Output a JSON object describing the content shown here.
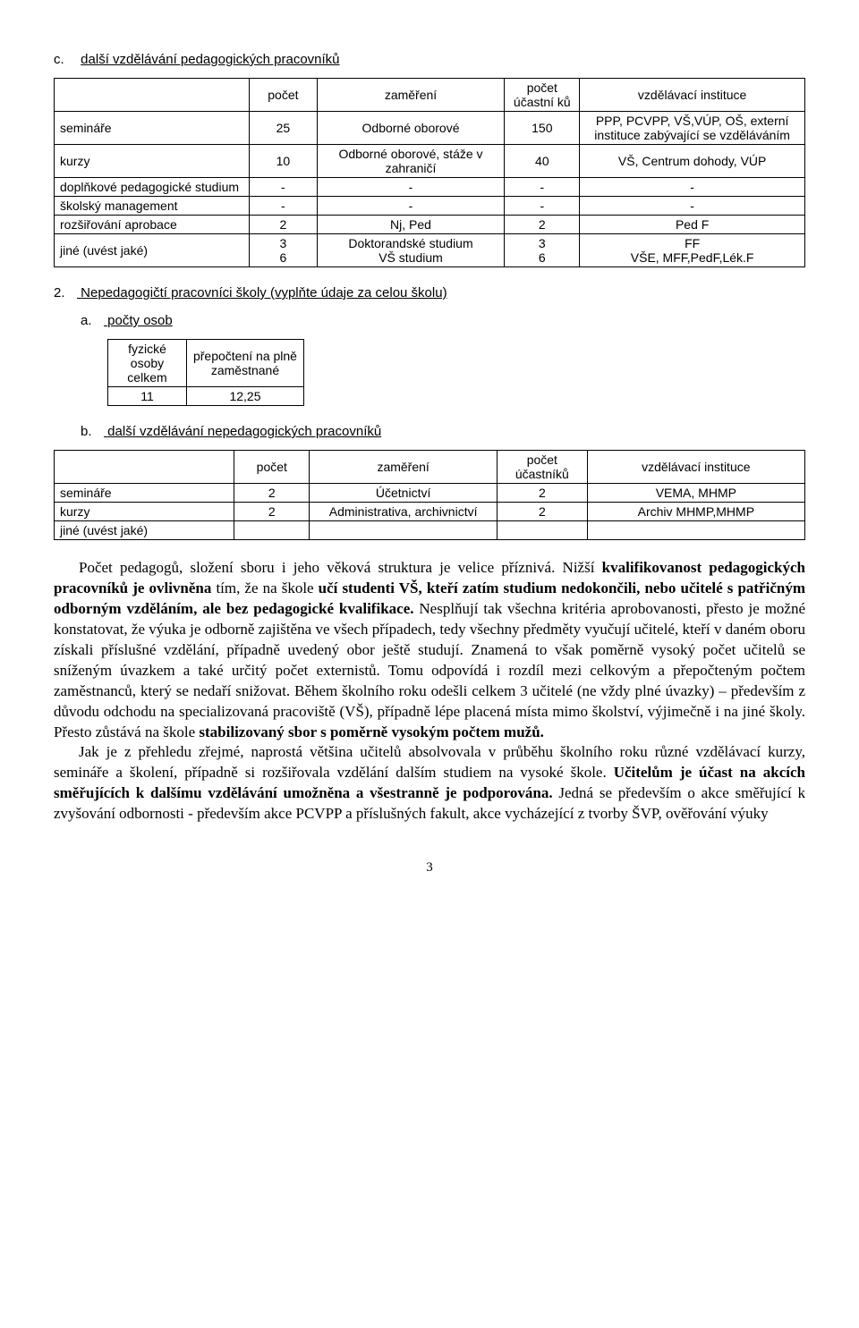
{
  "section_c": {
    "label_letter": "c.",
    "label_text": "další vzdělávání pedagogických pracovníků",
    "table": {
      "headers": [
        "",
        "počet",
        "zaměření",
        "počet účastní ků",
        "vzdělávací instituce"
      ],
      "rows": [
        [
          "semináře",
          "25",
          "Odborné oborové",
          "150",
          "PPP, PCVPP, VŠ,VÚP, OŠ, externí instituce zabývající se vzděláváním"
        ],
        [
          "kurzy",
          "10",
          "Odborné oborové, stáže v zahraničí",
          "40",
          "VŠ, Centrum dohody, VÚP"
        ],
        [
          "doplňkové pedagogické studium",
          "-",
          "-",
          "-",
          "-"
        ],
        [
          "školský management",
          "-",
          "-",
          "-",
          "-"
        ],
        [
          "rozšiřování aprobace",
          "2",
          "Nj, Ped",
          "2",
          "Ped F"
        ],
        [
          "jiné (uvést jaké)",
          "3\n6",
          "Doktorandské studium\nVŠ studium",
          "3\n6",
          "FF\nVŠE, MFF,PedF,Lék.F"
        ]
      ],
      "col_widths": [
        "26%",
        "9%",
        "25%",
        "10%",
        "30%"
      ]
    }
  },
  "section_2": {
    "label_number": "2.",
    "label_text": "Nepedagogičtí pracovníci školy (vyplňte údaje za celou školu)"
  },
  "section_a": {
    "label_letter": "a.",
    "label_text": "počty osob",
    "table": {
      "headers": [
        "fyzické osoby celkem",
        "přepočtení na plně zaměstnané"
      ],
      "rows": [
        [
          "11",
          "12,25"
        ]
      ]
    }
  },
  "section_b": {
    "label_letter": "b.",
    "label_text": "další vzdělávání nepedagogických pracovníků",
    "table": {
      "headers": [
        "",
        "počet",
        "zaměření",
        "počet účastníků",
        "vzdělávací instituce"
      ],
      "rows": [
        [
          "semináře",
          "2",
          "Účetnictví",
          "2",
          "VEMA, MHMP"
        ],
        [
          "kurzy",
          "2",
          "Administrativa, archivnictví",
          "2",
          "Archiv MHMP,MHMP"
        ],
        [
          "jiné (uvést jaké)",
          "",
          "",
          "",
          ""
        ]
      ],
      "col_widths": [
        "24%",
        "10%",
        "25%",
        "12%",
        "29%"
      ]
    }
  },
  "prose": {
    "p1_runs": [
      {
        "t": "   Počet pedagogů, složení sboru i jeho věková struktura je velice příznivá. Nižší ",
        "b": false
      },
      {
        "t": "kvalifikovanost pedagogických pracovníků je ovlivněna",
        "b": true
      },
      {
        "t": " tím, že na škole ",
        "b": false
      },
      {
        "t": "učí studenti VŠ, kteří zatím studium nedokončili, nebo učitelé s patřičným odborným vzděláním, ale bez pedagogické kvalifikace.",
        "b": true
      },
      {
        "t": " Nesplňují tak všechna kritéria aprobovanosti, přesto je možné konstatovat, že výuka je odborně zajištěna ve všech případech, tedy všechny předměty vyučují učitelé, kteří v daném oboru získali příslušné vzdělání, případně uvedený obor ještě studují. Znamená to však poměrně vysoký počet učitelů se sníženým úvazkem a také určitý počet externistů. Tomu odpovídá i rozdíl mezi celkovým a přepočteným počtem zaměstnanců, který se nedaří snižovat.  Během školního roku odešli celkem 3 učitelé (ne vždy plné úvazky) – především z důvodu odchodu na specializovaná pracoviště (VŠ), případně lépe placená místa mimo školství, výjimečně i na jiné školy. Přesto zůstává na škole ",
        "b": false
      },
      {
        "t": "stabilizovaný sbor s poměrně vysokým počtem mužů.",
        "b": true
      }
    ],
    "p2_runs": [
      {
        "t": "   Jak je z přehledu zřejmé, naprostá většina učitelů absolvovala v průběhu školního roku různé vzdělávací kurzy, semináře a školení, případně si rozšiřovala vzdělání dalším studiem na vysoké škole. ",
        "b": false
      },
      {
        "t": "Učitelům je účast na akcích směřujících k dalšímu vzdělávání umožněna a všestranně je  podporována.",
        "b": true
      },
      {
        "t": " Jedná se především o akce směřující k zvyšování odbornosti - především akce PCVPP a příslušných fakult, akce vycházející z tvorby ŠVP, ověřování výuky",
        "b": false
      }
    ]
  },
  "page_number": "3"
}
